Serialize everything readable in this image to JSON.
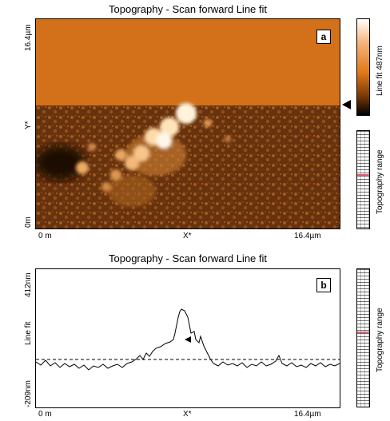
{
  "panel_a": {
    "title": "Topography - Scan forward   Line fit",
    "badge": "a",
    "y_top": "16.4µm",
    "y_mid": "Y*",
    "y_bottom": "0m",
    "x_left": "0 m",
    "x_mid": "X*",
    "x_right": "16.4µm",
    "colorbar_label": "Line fit 487nm",
    "range_label": "Topography range"
  },
  "panel_b": {
    "title": "Topography - Scan forward   Line fit",
    "badge": "b",
    "y_top": "412nm",
    "y_mid": "Line fit",
    "y_bottom": "-209nm",
    "x_left": "0 m",
    "x_mid": "X*",
    "x_right": "16.4µm",
    "range_label": "Topography range"
  },
  "colors": {
    "flat_orange": "#d3701a",
    "dark_brown": "#3a1a05",
    "highlight": "#fff3dc"
  }
}
